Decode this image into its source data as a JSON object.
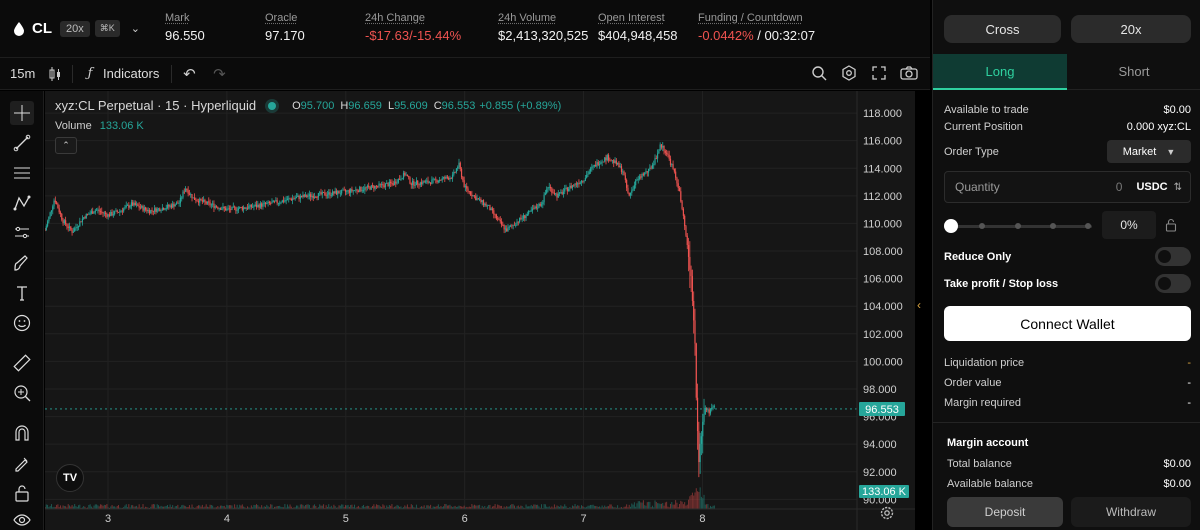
{
  "market": {
    "symbol": "CL",
    "leverage_badge": "20x",
    "shortcut_badge": "⌘K",
    "stats": [
      {
        "label": "Mark",
        "value": "96.550"
      },
      {
        "label": "Oracle",
        "value": "97.170"
      },
      {
        "label": "24h Change",
        "value": "-$17.63/-15.44%",
        "negative": true
      },
      {
        "label": "24h Volume",
        "value": "$2,413,320,525"
      },
      {
        "label": "Open Interest",
        "value": "$404,948,458"
      },
      {
        "label": "Funding / Countdown",
        "value_neg": "-0.0442%",
        "value": " / 00:32:07"
      }
    ]
  },
  "chart_toolbar": {
    "timeframe": "15m",
    "indicators_label": "Indicators",
    "icons": [
      "candles-icon",
      "fx-icon",
      "undo-icon",
      "redo-icon",
      "settings-icon",
      "fullscreen-icon",
      "camera-icon"
    ]
  },
  "left_tools": [
    "crosshair-icon",
    "trendline-icon",
    "fib-icon",
    "pattern-icon",
    "position-icon",
    "brush-icon",
    "text-icon",
    "emoji-icon",
    "ruler-icon",
    "zoom-in-icon",
    "magnet-icon",
    "lock-drawing-icon",
    "lock-icon",
    "eye-icon"
  ],
  "legend": {
    "title": "xyz:CL Perpetual · 15 · Hyperliquid",
    "O": "95.700",
    "H": "96.659",
    "L": "95.609",
    "C": "96.553",
    "change": "+0.855 (+0.89%)",
    "volume_label": "Volume",
    "volume_value": "133.06 K"
  },
  "chart_data": {
    "type": "candlestick",
    "title": "xyz:CL Perpetual · 15 · Hyperliquid",
    "y_ticks": [
      "118.000",
      "116.000",
      "114.000",
      "112.000",
      "110.000",
      "108.000",
      "106.000",
      "104.000",
      "102.000",
      "100.000",
      "98.000",
      "96.000",
      "94.000",
      "92.000",
      "90.000"
    ],
    "ylim": [
      89.3,
      119.6
    ],
    "x_ticks": [
      "3",
      "4",
      "5",
      "6",
      "7",
      "8"
    ],
    "x_tick_positions": [
      3,
      4,
      5,
      6,
      7,
      8
    ],
    "xlim": [
      2.47,
      9.3
    ],
    "last_price_tag": "96.553",
    "volume_tag": "133.06 K",
    "up_color": "#26a69a",
    "down_color": "#ef5350",
    "price_path": [
      [
        2.47,
        109.5
      ],
      [
        2.55,
        111.8
      ],
      [
        2.62,
        110.2
      ],
      [
        2.7,
        109.4
      ],
      [
        2.8,
        110.5
      ],
      [
        2.9,
        111.0
      ],
      [
        3.0,
        110.6
      ],
      [
        3.1,
        110.9
      ],
      [
        3.2,
        111.4
      ],
      [
        3.35,
        110.9
      ],
      [
        3.5,
        111.2
      ],
      [
        3.6,
        111.5
      ],
      [
        3.65,
        112.6
      ],
      [
        3.72,
        111.8
      ],
      [
        3.85,
        111.4
      ],
      [
        4.0,
        111.0
      ],
      [
        4.2,
        111.2
      ],
      [
        4.4,
        111.5
      ],
      [
        4.6,
        111.9
      ],
      [
        4.8,
        112.1
      ],
      [
        5.0,
        112.3
      ],
      [
        5.2,
        112.6
      ],
      [
        5.4,
        112.9
      ],
      [
        5.5,
        113.6
      ],
      [
        5.55,
        112.9
      ],
      [
        5.7,
        113.0
      ],
      [
        5.9,
        113.4
      ],
      [
        5.95,
        114.3
      ],
      [
        6.0,
        112.6
      ],
      [
        6.1,
        111.8
      ],
      [
        6.2,
        111.2
      ],
      [
        6.3,
        110.0
      ],
      [
        6.35,
        109.5
      ],
      [
        6.45,
        110.2
      ],
      [
        6.55,
        110.8
      ],
      [
        6.65,
        111.5
      ],
      [
        6.7,
        112.7
      ],
      [
        6.78,
        112.0
      ],
      [
        6.88,
        112.6
      ],
      [
        7.0,
        113.2
      ],
      [
        7.05,
        113.8
      ],
      [
        7.12,
        114.4
      ],
      [
        7.2,
        114.8
      ],
      [
        7.28,
        114.3
      ],
      [
        7.33,
        113.8
      ],
      [
        7.38,
        111.9
      ],
      [
        7.43,
        112.9
      ],
      [
        7.5,
        113.6
      ],
      [
        7.55,
        113.8
      ],
      [
        7.6,
        114.6
      ],
      [
        7.65,
        115.7
      ],
      [
        7.7,
        115.1
      ],
      [
        7.75,
        114.0
      ],
      [
        7.8,
        112.6
      ],
      [
        7.85,
        109.8
      ],
      [
        7.9,
        106.4
      ],
      [
        7.93,
        103.0
      ],
      [
        7.95,
        97.0
      ],
      [
        7.97,
        93.0
      ],
      [
        7.99,
        95.0
      ],
      [
        8.02,
        96.8
      ],
      [
        8.06,
        96.3
      ],
      [
        8.1,
        96.7
      ]
    ]
  },
  "panel": {
    "mode_cross": "Cross",
    "mode_leverage": "20x",
    "tab_long": "Long",
    "tab_short": "Short",
    "available_label": "Available to trade",
    "available_value": "$0.00",
    "position_label": "Current Position",
    "position_value": "0.000 xyz:CL",
    "order_type_label": "Order Type",
    "order_type_value": "Market",
    "quantity_placeholder": "Quantity",
    "quantity_value": "0",
    "quantity_unit": "USDC",
    "percent_value": "0%",
    "slider_fraction": 0,
    "reduce_only_label": "Reduce Only",
    "tpsl_label": "Take profit / Stop loss",
    "connect_label": "Connect Wallet",
    "liq_label": "Liquidation price",
    "liq_value": "-",
    "order_value_label": "Order value",
    "order_value_value": "-",
    "margin_req_label": "Margin required",
    "margin_req_value": "-",
    "margin_account_title": "Margin account",
    "total_balance_label": "Total balance",
    "total_balance_value": "$0.00",
    "available_balance_label": "Available balance",
    "available_balance_value": "$0.00",
    "deposit_label": "Deposit",
    "withdraw_label": "Withdraw"
  }
}
